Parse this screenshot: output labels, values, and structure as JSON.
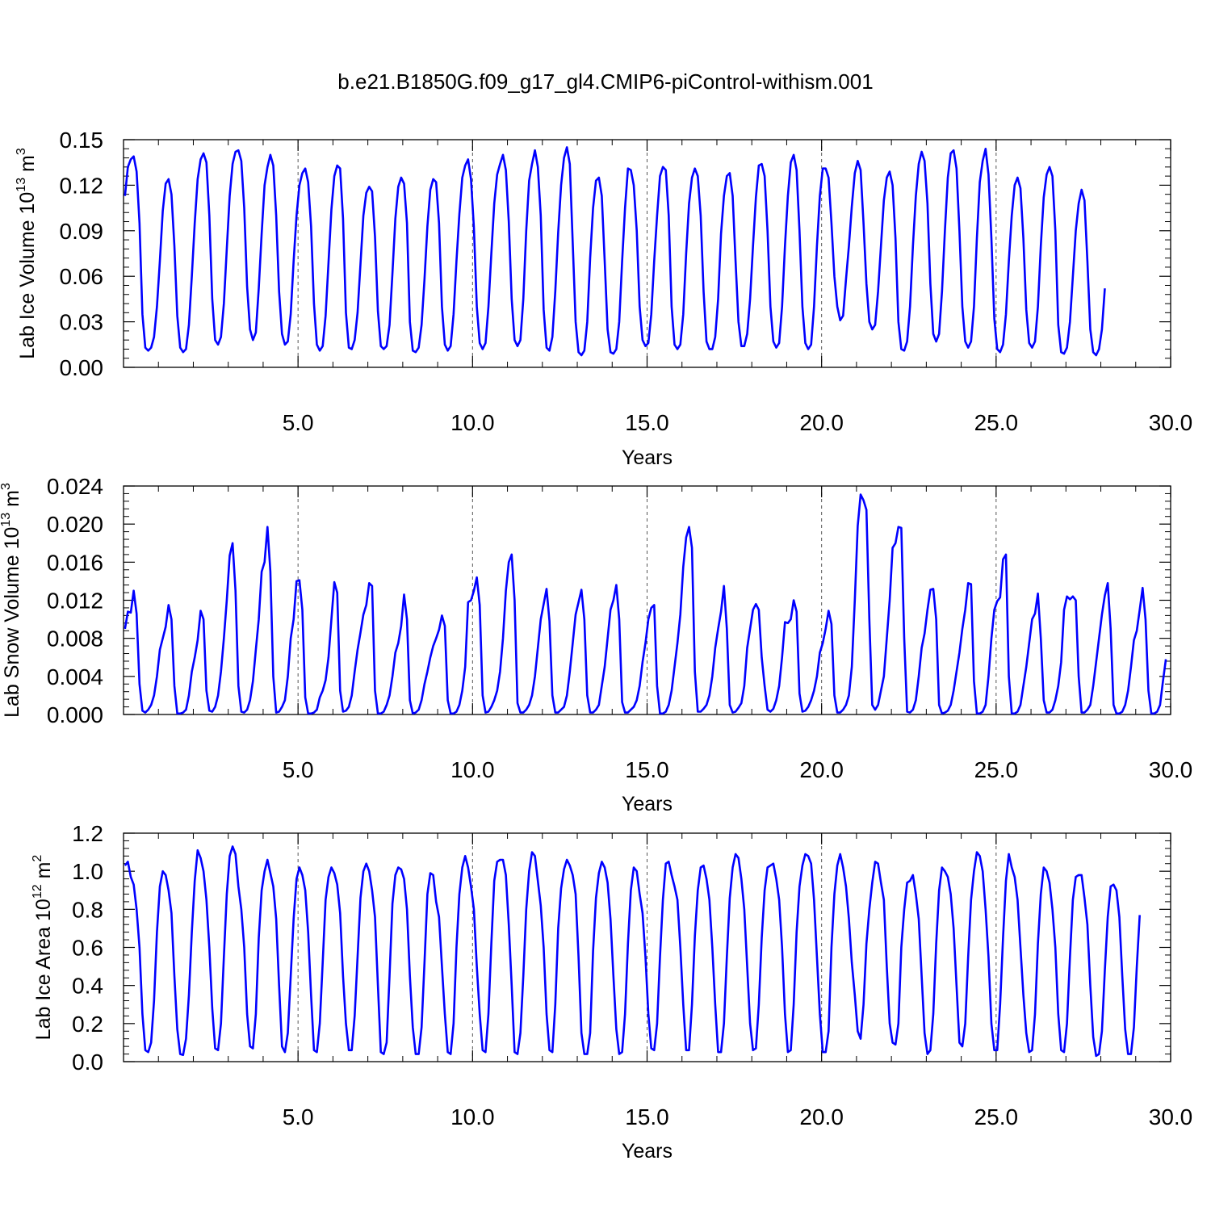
{
  "title": "b.e21.B1850G.f09_g17_gl4.CMIP6-piControl-withism.001",
  "colors": {
    "series": "#0000ff",
    "axes": "#000000",
    "grid": "#555555"
  },
  "chart_data": [
    {
      "type": "line",
      "xlabel": "Years",
      "ylabel": {
        "base": "Lab Ice Volume 10",
        "exp1": "13",
        "unit": " m",
        "exp2": "3"
      },
      "xlim": [
        0.0,
        30.0
      ],
      "ylim": [
        0.0,
        0.15
      ],
      "x_ticks": [
        5.0,
        10.0,
        15.0,
        20.0,
        25.0,
        30.0
      ],
      "x_tick_labels": [
        "5.0",
        "10.0",
        "15.0",
        "20.0",
        "25.0",
        "30.0"
      ],
      "y_ticks": [
        0.0,
        0.03,
        0.06,
        0.09,
        0.12,
        0.15
      ],
      "y_tick_labels": [
        "0.00",
        "0.03",
        "0.06",
        "0.09",
        "0.12",
        "0.15"
      ],
      "grid": "vertical dashed at 5-year marks",
      "x_start": 0.042,
      "x_step": 0.0833,
      "values": [
        0.113,
        0.132,
        0.137,
        0.139,
        0.129,
        0.095,
        0.035,
        0.013,
        0.011,
        0.013,
        0.02,
        0.04,
        0.07,
        0.103,
        0.121,
        0.124,
        0.114,
        0.08,
        0.034,
        0.013,
        0.01,
        0.012,
        0.028,
        0.06,
        0.095,
        0.124,
        0.137,
        0.141,
        0.135,
        0.1,
        0.045,
        0.018,
        0.015,
        0.02,
        0.042,
        0.078,
        0.113,
        0.134,
        0.142,
        0.143,
        0.136,
        0.105,
        0.053,
        0.025,
        0.018,
        0.023,
        0.052,
        0.088,
        0.12,
        0.132,
        0.14,
        0.133,
        0.1,
        0.05,
        0.022,
        0.015,
        0.017,
        0.035,
        0.07,
        0.1,
        0.12,
        0.128,
        0.131,
        0.122,
        0.093,
        0.042,
        0.015,
        0.011,
        0.014,
        0.034,
        0.069,
        0.104,
        0.126,
        0.133,
        0.131,
        0.098,
        0.036,
        0.013,
        0.012,
        0.018,
        0.036,
        0.068,
        0.1,
        0.115,
        0.119,
        0.116,
        0.086,
        0.037,
        0.014,
        0.012,
        0.014,
        0.028,
        0.062,
        0.098,
        0.119,
        0.125,
        0.121,
        0.095,
        0.03,
        0.011,
        0.01,
        0.013,
        0.028,
        0.058,
        0.093,
        0.117,
        0.124,
        0.122,
        0.095,
        0.04,
        0.015,
        0.011,
        0.014,
        0.035,
        0.07,
        0.101,
        0.125,
        0.133,
        0.137,
        0.124,
        0.092,
        0.04,
        0.016,
        0.012,
        0.016,
        0.04,
        0.075,
        0.108,
        0.127,
        0.134,
        0.14,
        0.13,
        0.096,
        0.045,
        0.018,
        0.014,
        0.018,
        0.045,
        0.09,
        0.123,
        0.134,
        0.143,
        0.132,
        0.1,
        0.038,
        0.013,
        0.011,
        0.02,
        0.05,
        0.089,
        0.12,
        0.138,
        0.145,
        0.134,
        0.082,
        0.03,
        0.01,
        0.008,
        0.011,
        0.03,
        0.072,
        0.105,
        0.123,
        0.125,
        0.113,
        0.07,
        0.025,
        0.01,
        0.009,
        0.012,
        0.03,
        0.07,
        0.105,
        0.131,
        0.13,
        0.12,
        0.09,
        0.04,
        0.018,
        0.014,
        0.016,
        0.035,
        0.07,
        0.1,
        0.126,
        0.132,
        0.13,
        0.1,
        0.04,
        0.015,
        0.012,
        0.015,
        0.035,
        0.075,
        0.108,
        0.125,
        0.131,
        0.126,
        0.1,
        0.05,
        0.017,
        0.012,
        0.012,
        0.02,
        0.045,
        0.088,
        0.113,
        0.126,
        0.128,
        0.113,
        0.07,
        0.03,
        0.014,
        0.014,
        0.022,
        0.045,
        0.08,
        0.112,
        0.133,
        0.134,
        0.126,
        0.09,
        0.04,
        0.017,
        0.013,
        0.016,
        0.04,
        0.08,
        0.113,
        0.135,
        0.14,
        0.13,
        0.09,
        0.04,
        0.016,
        0.012,
        0.015,
        0.04,
        0.08,
        0.113,
        0.131,
        0.131,
        0.125,
        0.095,
        0.06,
        0.04,
        0.031,
        0.034,
        0.058,
        0.08,
        0.106,
        0.128,
        0.136,
        0.13,
        0.095,
        0.055,
        0.03,
        0.025,
        0.028,
        0.05,
        0.08,
        0.11,
        0.125,
        0.129,
        0.12,
        0.085,
        0.03,
        0.012,
        0.011,
        0.017,
        0.04,
        0.08,
        0.113,
        0.134,
        0.142,
        0.136,
        0.108,
        0.055,
        0.022,
        0.017,
        0.022,
        0.05,
        0.09,
        0.125,
        0.141,
        0.143,
        0.131,
        0.09,
        0.04,
        0.017,
        0.013,
        0.017,
        0.04,
        0.085,
        0.122,
        0.136,
        0.144,
        0.127,
        0.085,
        0.032,
        0.012,
        0.01,
        0.015,
        0.035,
        0.07,
        0.1,
        0.12,
        0.125,
        0.118,
        0.085,
        0.038,
        0.016,
        0.013,
        0.017,
        0.04,
        0.08,
        0.112,
        0.127,
        0.132,
        0.126,
        0.09,
        0.028,
        0.01,
        0.009,
        0.013,
        0.03,
        0.06,
        0.09,
        0.108,
        0.117,
        0.11,
        0.07,
        0.025,
        0.01,
        0.008,
        0.012,
        0.025,
        0.052
      ]
    },
    {
      "type": "line",
      "xlabel": "Years",
      "ylabel": {
        "base": "Lab Snow Volume 10",
        "exp1": "13",
        "unit": " m",
        "exp2": "3"
      },
      "xlim": [
        0.0,
        30.0
      ],
      "ylim": [
        0.0,
        0.024
      ],
      "x_ticks": [
        5.0,
        10.0,
        15.0,
        20.0,
        25.0,
        30.0
      ],
      "x_tick_labels": [
        "5.0",
        "10.0",
        "15.0",
        "20.0",
        "25.0",
        "30.0"
      ],
      "y_ticks": [
        0.0,
        0.004,
        0.008,
        0.012,
        0.016,
        0.02,
        0.024
      ],
      "y_tick_labels": [
        "0.000",
        "0.004",
        "0.008",
        "0.012",
        "0.016",
        "0.020",
        "0.024"
      ],
      "grid": "vertical dashed at 5-year marks",
      "x_start": 0.042,
      "x_step": 0.0833,
      "values": [
        0.009,
        0.0108,
        0.0107,
        0.013,
        0.0106,
        0.0032,
        0.0004,
        0.0002,
        0.0005,
        0.001,
        0.002,
        0.004,
        0.0068,
        0.008,
        0.0092,
        0.0115,
        0.01,
        0.003,
        0.0001,
        0.0001,
        0.0002,
        0.0005,
        0.002,
        0.0045,
        0.006,
        0.0078,
        0.0109,
        0.01,
        0.0025,
        0.0004,
        0.0003,
        0.0008,
        0.002,
        0.0045,
        0.008,
        0.012,
        0.0167,
        0.018,
        0.013,
        0.003,
        0.0003,
        0.0002,
        0.0005,
        0.0015,
        0.0035,
        0.0068,
        0.01,
        0.015,
        0.016,
        0.0197,
        0.015,
        0.004,
        0.0002,
        0.0003,
        0.0008,
        0.0015,
        0.004,
        0.008,
        0.01,
        0.014,
        0.0141,
        0.011,
        0.0018,
        0.0001,
        0.0001,
        0.0002,
        0.0005,
        0.0018,
        0.0025,
        0.0036,
        0.006,
        0.01,
        0.0139,
        0.0128,
        0.0025,
        0.0003,
        0.0004,
        0.0008,
        0.002,
        0.0045,
        0.0068,
        0.0086,
        0.0105,
        0.0115,
        0.0138,
        0.0135,
        0.0025,
        0.0001,
        0.0001,
        0.0003,
        0.001,
        0.002,
        0.004,
        0.0065,
        0.0075,
        0.0093,
        0.0126,
        0.01,
        0.0015,
        0.0001,
        0.0002,
        0.0005,
        0.0015,
        0.0032,
        0.0045,
        0.006,
        0.0072,
        0.008,
        0.0089,
        0.0104,
        0.0093,
        0.0015,
        0.0001,
        0.0001,
        0.0003,
        0.001,
        0.0025,
        0.005,
        0.0118,
        0.012,
        0.013,
        0.0144,
        0.0115,
        0.002,
        0.0002,
        0.0003,
        0.0008,
        0.0015,
        0.0025,
        0.0045,
        0.008,
        0.013,
        0.016,
        0.0168,
        0.012,
        0.0012,
        0.0002,
        0.0002,
        0.0005,
        0.001,
        0.002,
        0.004,
        0.007,
        0.01,
        0.0116,
        0.0132,
        0.0098,
        0.002,
        0.0002,
        0.0002,
        0.0005,
        0.0008,
        0.002,
        0.0045,
        0.0075,
        0.0105,
        0.0118,
        0.0131,
        0.01,
        0.002,
        0.0002,
        0.0002,
        0.0005,
        0.001,
        0.003,
        0.005,
        0.008,
        0.011,
        0.012,
        0.0136,
        0.01,
        0.0013,
        0.0002,
        0.0002,
        0.0005,
        0.0008,
        0.0015,
        0.003,
        0.0055,
        0.0075,
        0.01,
        0.0112,
        0.0115,
        0.003,
        0.0001,
        0.0001,
        0.0003,
        0.001,
        0.0025,
        0.005,
        0.0075,
        0.0105,
        0.0155,
        0.0186,
        0.0197,
        0.0175,
        0.0045,
        0.0003,
        0.0003,
        0.0006,
        0.001,
        0.002,
        0.004,
        0.007,
        0.009,
        0.0108,
        0.0135,
        0.009,
        0.001,
        0.0002,
        0.0003,
        0.0007,
        0.0012,
        0.003,
        0.007,
        0.009,
        0.011,
        0.0116,
        0.011,
        0.006,
        0.003,
        0.0005,
        0.0003,
        0.0006,
        0.0015,
        0.003,
        0.006,
        0.0097,
        0.0096,
        0.01,
        0.012,
        0.0108,
        0.0022,
        0.0003,
        0.0004,
        0.0008,
        0.0015,
        0.0025,
        0.004,
        0.0065,
        0.0075,
        0.009,
        0.0109,
        0.0095,
        0.002,
        0.0002,
        0.0002,
        0.0005,
        0.001,
        0.002,
        0.005,
        0.012,
        0.0198,
        0.0231,
        0.0225,
        0.0215,
        0.01,
        0.001,
        0.0005,
        0.001,
        0.0025,
        0.004,
        0.008,
        0.012,
        0.0175,
        0.018,
        0.0197,
        0.0196,
        0.008,
        0.0003,
        0.0002,
        0.0005,
        0.0015,
        0.004,
        0.007,
        0.0085,
        0.011,
        0.0131,
        0.0132,
        0.01,
        0.001,
        0.0001,
        0.0002,
        0.0004,
        0.001,
        0.0025,
        0.0045,
        0.0065,
        0.009,
        0.011,
        0.0138,
        0.0137,
        0.0035,
        0.0001,
        0.0001,
        0.0003,
        0.001,
        0.004,
        0.008,
        0.011,
        0.0119,
        0.0123,
        0.0163,
        0.0168,
        0.004,
        0.0001,
        0.0001,
        0.0003,
        0.001,
        0.003,
        0.005,
        0.0075,
        0.01,
        0.0106,
        0.0127,
        0.008,
        0.0015,
        0.0002,
        0.0002,
        0.0005,
        0.0015,
        0.003,
        0.0055,
        0.011,
        0.0124,
        0.0121,
        0.0124,
        0.012,
        0.004,
        0.0002,
        0.0002,
        0.0005,
        0.001,
        0.003,
        0.0055,
        0.008,
        0.0105,
        0.0125,
        0.0138,
        0.009,
        0.001,
        0.0001,
        0.0001,
        0.0003,
        0.001,
        0.0025,
        0.005,
        0.0078,
        0.0088,
        0.011,
        0.0133,
        0.01,
        0.0025,
        0.0001,
        0.0001,
        0.0003,
        0.001,
        0.0035,
        0.0058
      ]
    },
    {
      "type": "line",
      "xlabel": "Years",
      "ylabel": {
        "base": "Lab Ice Area 10",
        "exp1": "12",
        "unit": " m",
        "exp2": "2"
      },
      "xlim": [
        0.0,
        30.0
      ],
      "ylim": [
        0.0,
        1.2
      ],
      "x_ticks": [
        5.0,
        10.0,
        15.0,
        20.0,
        25.0,
        30.0
      ],
      "x_tick_labels": [
        "5.0",
        "10.0",
        "15.0",
        "20.0",
        "25.0",
        "30.0"
      ],
      "y_ticks": [
        0.0,
        0.2,
        0.4,
        0.6,
        0.8,
        1.0,
        1.2
      ],
      "y_tick_labels": [
        "0.0",
        "0.2",
        "0.4",
        "0.6",
        "0.8",
        "1.0",
        "1.2"
      ],
      "grid": "vertical dashed at 5-year marks",
      "x_start": 0.042,
      "x_step": 0.0833,
      "values": [
        1.03,
        1.05,
        0.97,
        0.93,
        0.8,
        0.6,
        0.25,
        0.06,
        0.05,
        0.1,
        0.32,
        0.68,
        0.92,
        1.0,
        0.98,
        0.9,
        0.78,
        0.45,
        0.17,
        0.04,
        0.035,
        0.12,
        0.35,
        0.68,
        0.95,
        1.11,
        1.07,
        1.0,
        0.85,
        0.6,
        0.28,
        0.07,
        0.06,
        0.2,
        0.55,
        0.88,
        1.08,
        1.13,
        1.09,
        0.92,
        0.8,
        0.6,
        0.25,
        0.08,
        0.07,
        0.25,
        0.65,
        0.9,
        1.0,
        1.06,
        0.99,
        0.92,
        0.75,
        0.4,
        0.08,
        0.05,
        0.15,
        0.45,
        0.75,
        0.96,
        1.02,
        0.98,
        0.9,
        0.68,
        0.35,
        0.06,
        0.05,
        0.2,
        0.52,
        0.85,
        0.97,
        1.02,
        0.99,
        0.93,
        0.78,
        0.45,
        0.2,
        0.06,
        0.06,
        0.24,
        0.55,
        0.86,
        1.0,
        1.04,
        1.0,
        0.9,
        0.76,
        0.4,
        0.05,
        0.04,
        0.1,
        0.45,
        0.83,
        0.98,
        1.02,
        1.01,
        0.96,
        0.8,
        0.45,
        0.18,
        0.04,
        0.04,
        0.18,
        0.52,
        0.88,
        0.99,
        0.98,
        0.84,
        0.76,
        0.5,
        0.25,
        0.05,
        0.04,
        0.2,
        0.6,
        0.88,
        1.02,
        1.08,
        1.02,
        0.92,
        0.8,
        0.5,
        0.25,
        0.06,
        0.05,
        0.25,
        0.62,
        0.95,
        1.05,
        1.06,
        1.06,
        0.98,
        0.72,
        0.4,
        0.05,
        0.04,
        0.15,
        0.45,
        0.8,
        1.0,
        1.1,
        1.08,
        0.95,
        0.82,
        0.6,
        0.25,
        0.06,
        0.05,
        0.3,
        0.7,
        0.91,
        1.01,
        1.06,
        1.03,
        0.98,
        0.88,
        0.55,
        0.15,
        0.04,
        0.04,
        0.15,
        0.58,
        0.86,
        0.99,
        1.05,
        1.02,
        0.94,
        0.75,
        0.45,
        0.17,
        0.04,
        0.05,
        0.25,
        0.62,
        0.9,
        1.02,
        1.0,
        0.88,
        0.78,
        0.55,
        0.25,
        0.07,
        0.06,
        0.2,
        0.55,
        0.85,
        1.04,
        1.05,
        0.98,
        0.92,
        0.85,
        0.6,
        0.3,
        0.06,
        0.06,
        0.3,
        0.66,
        0.9,
        1.02,
        1.03,
        0.96,
        0.85,
        0.6,
        0.3,
        0.05,
        0.05,
        0.2,
        0.55,
        0.86,
        1.02,
        1.09,
        1.07,
        0.96,
        0.8,
        0.5,
        0.2,
        0.06,
        0.07,
        0.3,
        0.65,
        0.9,
        1.02,
        1.03,
        1.04,
        0.96,
        0.85,
        0.6,
        0.25,
        0.05,
        0.06,
        0.3,
        0.68,
        0.92,
        1.03,
        1.09,
        1.08,
        1.04,
        0.85,
        0.55,
        0.25,
        0.05,
        0.05,
        0.16,
        0.6,
        0.88,
        1.03,
        1.09,
        1.02,
        0.92,
        0.75,
        0.52,
        0.35,
        0.16,
        0.12,
        0.3,
        0.62,
        0.8,
        0.94,
        1.05,
        1.04,
        0.94,
        0.85,
        0.5,
        0.2,
        0.1,
        0.09,
        0.2,
        0.6,
        0.8,
        0.94,
        0.95,
        0.98,
        0.88,
        0.75,
        0.45,
        0.15,
        0.04,
        0.06,
        0.25,
        0.62,
        0.9,
        1.02,
        1.0,
        0.97,
        0.88,
        0.7,
        0.4,
        0.1,
        0.08,
        0.2,
        0.55,
        0.85,
        1.0,
        1.1,
        1.08,
        1.0,
        0.8,
        0.55,
        0.2,
        0.06,
        0.06,
        0.3,
        0.65,
        0.95,
        1.09,
        1.02,
        0.97,
        0.85,
        0.6,
        0.35,
        0.15,
        0.05,
        0.06,
        0.25,
        0.62,
        0.88,
        1.02,
        1.0,
        0.94,
        0.8,
        0.6,
        0.25,
        0.06,
        0.05,
        0.2,
        0.55,
        0.85,
        0.97,
        0.98,
        0.98,
        0.86,
        0.72,
        0.4,
        0.13,
        0.03,
        0.04,
        0.16,
        0.48,
        0.76,
        0.92,
        0.93,
        0.9,
        0.76,
        0.45,
        0.17,
        0.04,
        0.04,
        0.18,
        0.5,
        0.77
      ]
    }
  ]
}
